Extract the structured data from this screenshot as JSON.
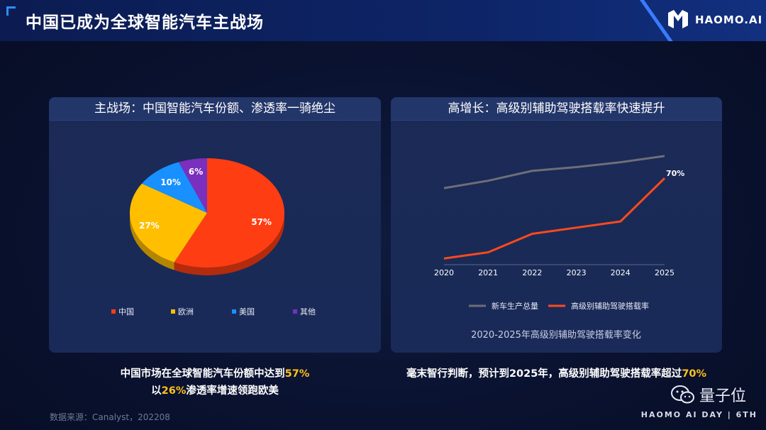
{
  "header": {
    "title": "中国已成为全球智能汽车主战场",
    "logo_text": "HAOMO.AI"
  },
  "left_panel": {
    "heading": "主战场：中国智能汽车份额、渗透率一骑绝尘",
    "caption_line1_pre": "中国市场在全球智能汽车份额中达到",
    "caption_line1_hl": "57%",
    "caption_line2_pre": "以",
    "caption_line2_hl": "26%",
    "caption_line2_post": "渗透率增速领跑欧美"
  },
  "right_panel": {
    "heading": "高增长：高级别辅助驾驶搭载率快速提升",
    "chart_caption": "2020-2025年高级别辅助驾驶搭载率变化",
    "caption_pre": "毫末智行判断，预计到2025年，高级别辅助驾驶搭载率超过",
    "caption_hl": "70%"
  },
  "source": "数据来源：Canalyst，202208",
  "footer": "HAOMO AI DAY | 6TH",
  "watermark": "量子位",
  "colors": {
    "china": "#ff3d12",
    "europe": "#ffbf00",
    "usa": "#1890ff",
    "other": "#7b2fbe",
    "gray_line": "#6e6e78",
    "red_line": "#ff4a1c",
    "highlight": "#ffc21a"
  },
  "chart_data": [
    {
      "type": "pie",
      "labels": [
        "中国",
        "欧洲",
        "美国",
        "其他"
      ],
      "values": [
        57,
        27,
        10,
        6
      ],
      "value_labels": [
        "57%",
        "27%",
        "10%",
        "6%"
      ],
      "legend_position": "bottom"
    },
    {
      "type": "line",
      "x": [
        "2020",
        "2021",
        "2022",
        "2023",
        "2024",
        "2025"
      ],
      "series": [
        {
          "name": "新车生产总量",
          "values": [
            62,
            68,
            76,
            79,
            83,
            88
          ]
        },
        {
          "name": "高级别辅助驾驶搭载率",
          "values": [
            5,
            10,
            25,
            30,
            35,
            70
          ]
        }
      ],
      "annotations": [
        {
          "series": 1,
          "index": 5,
          "text": "70%"
        }
      ],
      "ylim": [
        0,
        100
      ],
      "legend_position": "bottom"
    }
  ]
}
